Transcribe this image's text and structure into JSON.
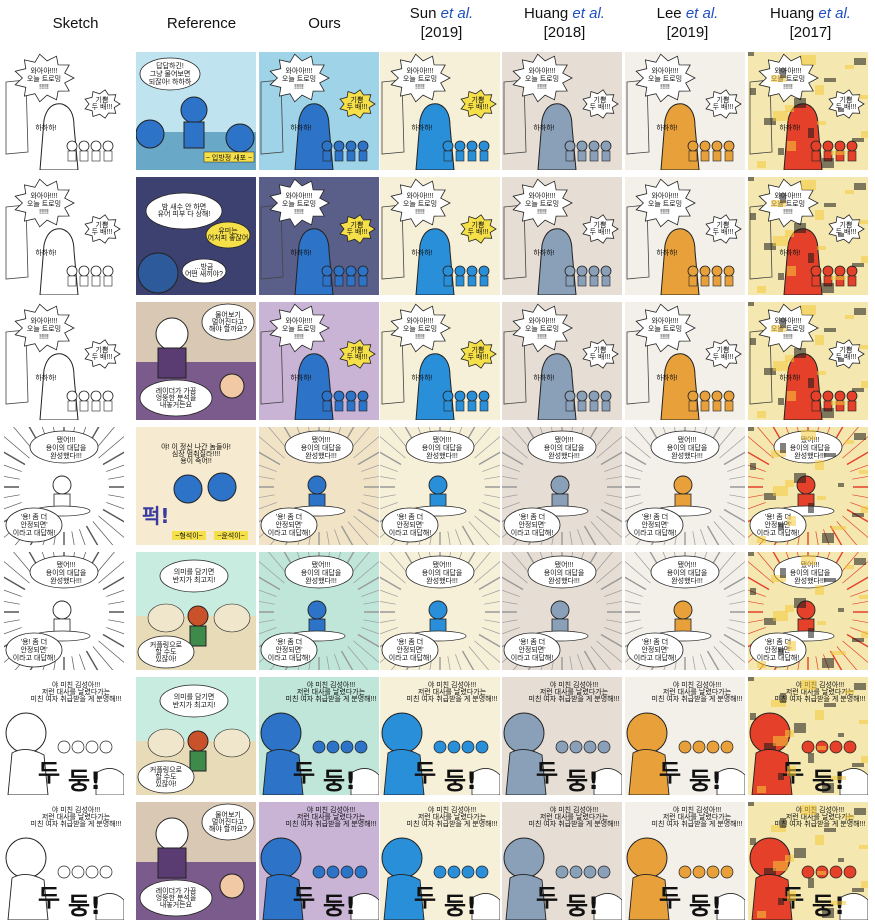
{
  "columns": [
    {
      "name": "Sketch",
      "etal": false,
      "year": ""
    },
    {
      "name": "Reference",
      "etal": false,
      "year": ""
    },
    {
      "name": "Ours",
      "etal": false,
      "year": ""
    },
    {
      "name": "Sun",
      "etal": true,
      "year": "[2019]"
    },
    {
      "name": "Huang",
      "etal": true,
      "year": "[2018]"
    },
    {
      "name": "Lee",
      "etal": true,
      "year": "[2019]"
    },
    {
      "name": "Huang",
      "etal": true,
      "year": "[2017]"
    }
  ],
  "etal_text": "et al.",
  "rows": [
    {
      "sketch": "A",
      "reference": "boat",
      "tint": "#9fd3e8"
    },
    {
      "sketch": "A",
      "reference": "night",
      "tint": "#5a5f8a"
    },
    {
      "sketch": "A",
      "reference": "purple",
      "tint": "#c9b4d6"
    },
    {
      "sketch": "B",
      "reference": "explosion",
      "tint": "#f1e3c6"
    },
    {
      "sketch": "B",
      "reference": "village",
      "tint": "#bfe6d8"
    },
    {
      "sketch": "C",
      "reference": "village",
      "tint": "#bfe6d8"
    },
    {
      "sketch": "C",
      "reference": "purple",
      "tint": "#c9b4d6"
    }
  ],
  "bubble_texts": {
    "A1": "와아아!!!!",
    "A2": "오늘 트로밍",
    "A3": "!!!!!",
    "A4": "기쁨",
    "A5": "두 배!!!",
    "A6": "하하하!",
    "B1": "됐어!!!",
    "B2": "용이의 대답을",
    "B3": "완성했다!!!",
    "B4": "'용! 좀 더",
    "B5": "안정되면'",
    "B6": "이라고 대답해!",
    "C1": "야 미친 김성아!!!",
    "C2": "저런 대사를 날렸다가는",
    "C3": "미친 여자 취급받을 게 분명해!!!",
    "C4": "두",
    "C5": "둥!"
  },
  "reference_texts": {
    "boat1": "답답하긴!",
    "boat2": "그냥 물어보면",
    "boat3": "되잖아! 하하하",
    "boat4": "~ 입방정 새포 ~",
    "night1": "밤 새수 안 하면",
    "night2": "유어 피부 다 상해!",
    "night3": "유미는",
    "night4": "어처피 좋잖어",
    "night5": "...방금",
    "night6": "어떤 새끼야?",
    "purple1": "물어보기",
    "purple2": "멀어진다고",
    "purple3": "해야 할까요?",
    "purple4": "레이더가 가끔",
    "purple5": "엉뚱한 분석을",
    "purple6": "내놓거든요",
    "explosion1": "야! 이 정신 나간 놈들아!",
    "explosion2": "심장 멈춰질라!!!!",
    "explosion3": "용이 죽어!!",
    "explosion4": "퍽!",
    "explosion5": "~형석이~",
    "explosion6": "~윤석이~",
    "village1": "의미를 담기면",
    "village2": "반지가 최고지!",
    "village3": "커플링으로",
    "village4": "할 수도",
    "village5": "있잖아!"
  },
  "colors": {
    "ours_blue": "#2d73c8",
    "sun_blue": "#2a8fd9",
    "lee_orange": "#e8a13a",
    "huang17_red": "#e4402a",
    "huang17_yellow": "#f5c93a"
  }
}
